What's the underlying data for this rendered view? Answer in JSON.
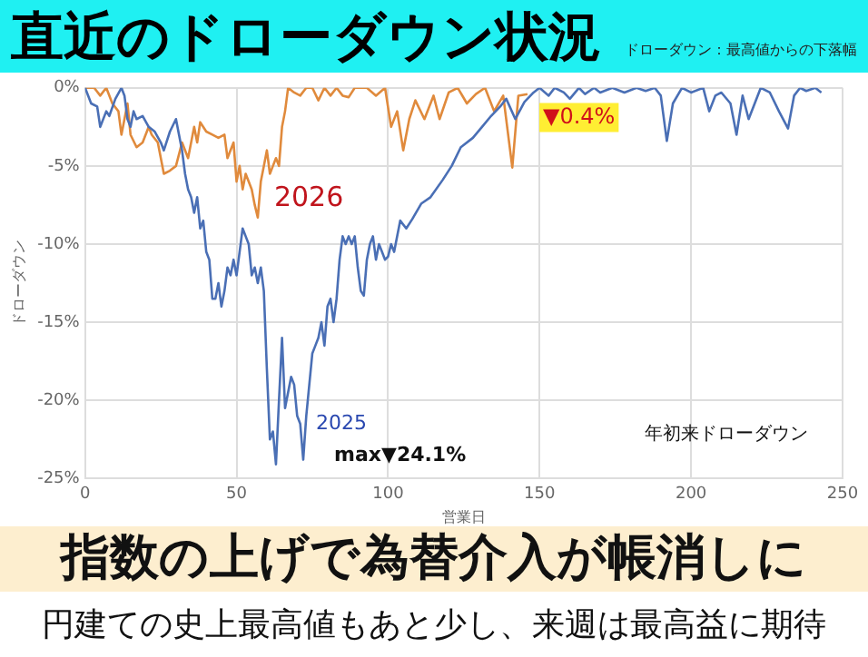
{
  "chart_data": {
    "type": "line",
    "title": "直近のドローダウン状況",
    "subtitle": "ドローダウン：最高値からの下落幅",
    "xlabel": "営業日",
    "ylabel": "ドローダウン",
    "series": [
      {
        "name": "2025",
        "color": "#4a6fb5",
        "x": [
          0,
          2,
          4,
          5,
          7,
          8,
          10,
          12,
          13,
          14,
          15,
          16,
          17,
          19,
          21,
          23,
          25,
          26,
          28,
          30,
          31,
          32,
          33,
          34,
          35,
          36,
          37,
          38,
          39,
          40,
          41,
          42,
          43,
          44,
          45,
          46,
          47,
          48,
          49,
          50,
          51,
          52,
          53,
          54,
          55,
          56,
          57,
          58,
          59,
          60,
          61,
          62,
          63,
          64,
          65,
          66,
          67,
          68,
          69,
          70,
          71,
          72,
          73,
          74,
          75,
          76,
          77,
          78,
          79,
          80,
          81,
          82,
          83,
          84,
          85,
          86,
          87,
          88,
          89,
          90,
          91,
          92,
          93,
          94,
          95,
          96,
          97,
          98,
          99,
          100,
          101,
          102,
          103,
          104,
          106,
          108,
          111,
          114,
          118,
          121,
          124,
          128,
          131,
          134,
          137,
          139,
          142,
          145,
          148,
          150,
          153,
          155,
          158,
          160,
          163,
          165,
          168,
          170,
          174,
          178,
          182,
          185,
          188,
          190,
          192,
          194,
          197,
          200,
          204,
          206,
          208,
          210,
          213,
          215,
          217,
          219,
          221,
          223,
          226,
          229,
          232,
          234,
          236,
          238,
          241,
          243
        ],
        "values": [
          0,
          -1,
          -1.2,
          -2.5,
          -1.5,
          -1.8,
          -0.7,
          0,
          -0.5,
          -2,
          -2.5,
          -1.5,
          -2,
          -1.8,
          -2.5,
          -2.8,
          -3.5,
          -4,
          -2.8,
          -2,
          -3,
          -4,
          -5.5,
          -6.5,
          -7,
          -8,
          -7,
          -9,
          -8.5,
          -10.5,
          -11,
          -13.5,
          -13.5,
          -12.5,
          -14,
          -13,
          -11.5,
          -12,
          -11,
          -12,
          -10.5,
          -9,
          -9.5,
          -10,
          -12,
          -11.5,
          -12.5,
          -11.5,
          -13,
          -18,
          -22.5,
          -22,
          -24.1,
          -20,
          -16,
          -20.5,
          -19.5,
          -18.5,
          -19,
          -21,
          -21.5,
          -23.8,
          -21,
          -19,
          -17,
          -16.5,
          -16,
          -15,
          -16.5,
          -14,
          -13.5,
          -15,
          -13.5,
          -11,
          -9.5,
          -10,
          -9.5,
          -10,
          -9.5,
          -11.5,
          -13,
          -13.3,
          -11,
          -10,
          -9.5,
          -11,
          -10,
          -10.5,
          -11,
          -10.8,
          -10,
          -10.5,
          -9.5,
          -8.5,
          -9,
          -8.4,
          -7.4,
          -7,
          -5.9,
          -5,
          -3.8,
          -3.2,
          -2.5,
          -1.8,
          -1.2,
          -0.7,
          -2,
          -0.9,
          -0.3,
          0,
          -0.5,
          0,
          -0.3,
          -0.7,
          0,
          -0.4,
          0,
          -0.3,
          0,
          -0.3,
          0,
          -0.2,
          0,
          -0.5,
          -3.4,
          -1,
          0,
          -0.3,
          0,
          -1.5,
          -0.5,
          -0.3,
          -1,
          -3,
          -0.5,
          -2,
          -1,
          0,
          -0.3,
          -1.5,
          -2.6,
          -0.5,
          0,
          -0.2,
          0,
          -0.3
        ]
      },
      {
        "name": "2026",
        "color": "#e08a3c",
        "x": [
          0,
          3,
          5,
          7,
          9,
          11,
          12,
          13,
          14,
          15,
          17,
          19,
          21,
          22,
          24,
          26,
          28,
          30,
          32,
          34,
          36,
          37,
          38,
          40,
          42,
          44,
          46,
          47,
          49,
          50,
          51,
          52,
          53,
          55,
          56,
          57,
          58,
          59,
          60,
          61,
          62,
          63,
          64,
          65,
          66,
          67,
          69,
          71,
          73,
          75,
          77,
          79,
          81,
          83,
          85,
          87,
          89,
          93,
          96,
          99,
          101,
          103,
          105,
          107,
          109,
          112,
          115,
          117,
          120,
          123,
          126,
          129,
          132,
          135,
          138,
          141,
          143,
          146
        ],
        "values": [
          0,
          0,
          -0.5,
          0,
          -1,
          -1.5,
          -3,
          -2,
          -1,
          -3,
          -3.8,
          -3.5,
          -2.5,
          -3,
          -3.5,
          -5.5,
          -5.3,
          -5,
          -3.5,
          -4.5,
          -2.5,
          -3.5,
          -2.2,
          -2.8,
          -3,
          -3.2,
          -3,
          -4.5,
          -3.5,
          -6,
          -5,
          -6.5,
          -5.5,
          -6.5,
          -7.5,
          -8.3,
          -6,
          -5,
          -4,
          -5.5,
          -5,
          -4.5,
          -5,
          -2.5,
          -1.5,
          0,
          -0.3,
          -0.5,
          0,
          0,
          -0.8,
          0,
          -0.5,
          0,
          -0.5,
          -0.6,
          0,
          0,
          -0.5,
          0,
          -2.5,
          -1.5,
          -4,
          -2,
          -0.8,
          -2,
          -0.5,
          -2,
          -0.3,
          0,
          -1,
          -0.4,
          0,
          -1.5,
          -0.5,
          -5.1,
          -0.5,
          -0.4
        ]
      }
    ],
    "xlim": [
      0,
      250
    ],
    "xticks": [
      0,
      50,
      100,
      150,
      200,
      250
    ],
    "ylim": [
      -25,
      0
    ],
    "yticks": [
      {
        "value": -25,
        "label": "-25%"
      },
      {
        "value": -20,
        "label": "-20%"
      },
      {
        "value": -15,
        "label": "-15%"
      },
      {
        "value": -10,
        "label": "-10%"
      },
      {
        "value": -5,
        "label": "-5%"
      },
      {
        "value": 0,
        "label": "0%"
      }
    ],
    "grid": true,
    "legend": false,
    "marker": "none",
    "line_style": "solid",
    "annotations": [
      "max▼24.1%",
      {
        "text": "▼0.4%",
        "x": 163,
        "y": -1.9
      },
      "年初来ドローダウン",
      "指数の上げで為替介入が帳消しに",
      "円建ての史上最高値もあと少し、来週は最高益に期待"
    ]
  }
}
